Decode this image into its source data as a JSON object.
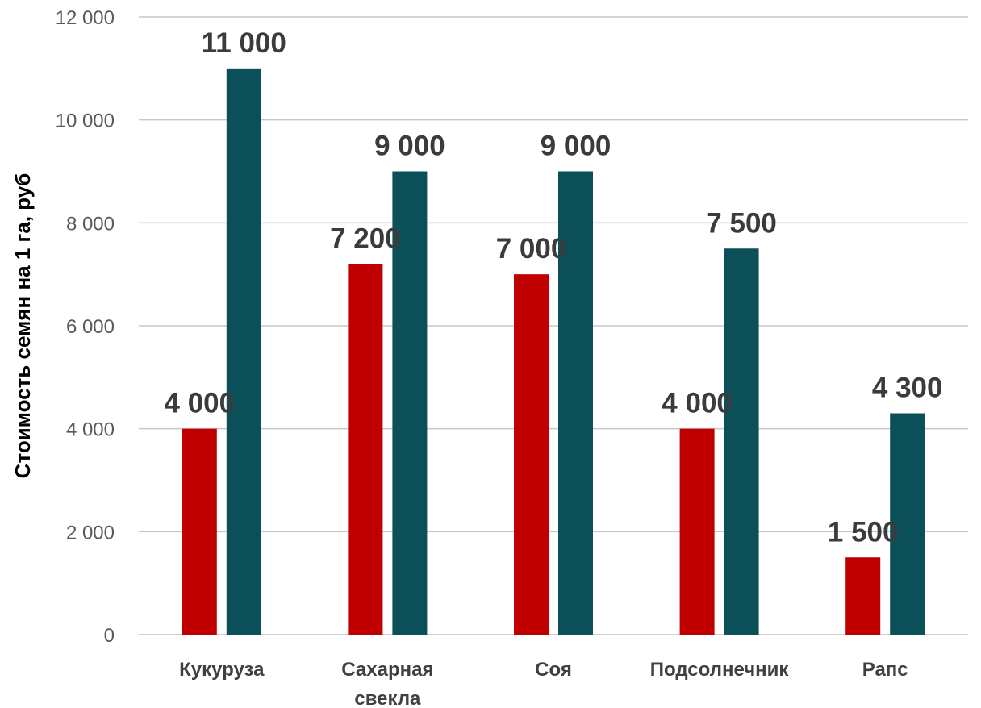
{
  "chart_data": {
    "type": "bar",
    "title": "",
    "xlabel": "",
    "ylabel": "Стоимость семян на 1 га, руб",
    "categories": [
      "Кукуруза",
      "Сахарная свекла",
      "Соя",
      "Подсолнечник",
      "Рапс"
    ],
    "category_lines": [
      [
        "Кукуруза"
      ],
      [
        "Сахарная",
        "свекла"
      ],
      [
        "Соя"
      ],
      [
        "Подсолнечник"
      ],
      [
        "Рапс"
      ]
    ],
    "series": [
      {
        "color": "#c00000",
        "values": [
          4000,
          7200,
          7000,
          4000,
          1500
        ],
        "labels": [
          "4 000",
          "7 200",
          "7 000",
          "4 000",
          "1 500"
        ]
      },
      {
        "color": "#0b5059",
        "values": [
          11000,
          9000,
          9000,
          7500,
          4300
        ],
        "labels": [
          "11 000",
          "9 000",
          "9 000",
          "7 500",
          "4 300"
        ]
      }
    ],
    "ylim": [
      0,
      12000
    ],
    "yticks": [
      0,
      2000,
      4000,
      6000,
      8000,
      10000,
      12000
    ],
    "ytick_labels": [
      "0",
      "2 000",
      "4 000",
      "6 000",
      "8 000",
      "10 000",
      "12 000"
    ],
    "grid": true,
    "legend": "none"
  }
}
